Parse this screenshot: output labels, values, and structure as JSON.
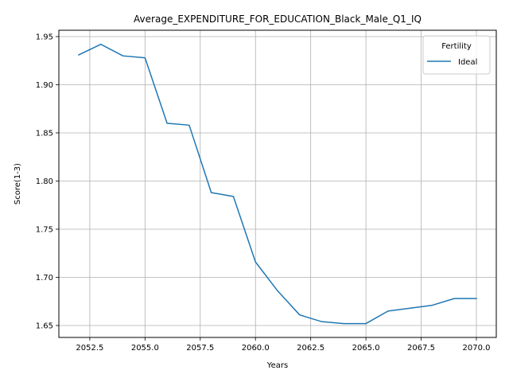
{
  "chart_data": {
    "type": "line",
    "title": "Average_EXPENDITURE_FOR_EDUCATION_Black_Male_Q1_IQ",
    "xlabel": "Years",
    "ylabel": "Score(1-3)",
    "xlim": [
      2051.1,
      2070.9
    ],
    "ylim": [
      1.6376,
      1.9566
    ],
    "xticks": [
      2052.5,
      2055.0,
      2057.5,
      2060.0,
      2062.5,
      2065.0,
      2067.5,
      2070.0
    ],
    "xtick_labels": [
      "2052.5",
      "2055.0",
      "2057.5",
      "2060.0",
      "2062.5",
      "2065.0",
      "2067.5",
      "2070.0"
    ],
    "yticks": [
      1.65,
      1.7,
      1.75,
      1.8,
      1.85,
      1.9,
      1.95
    ],
    "ytick_labels": [
      "1.65",
      "1.70",
      "1.75",
      "1.80",
      "1.85",
      "1.90",
      "1.95"
    ],
    "grid": true,
    "legend": {
      "title": "Fertility",
      "position": "top-right"
    },
    "x": [
      2052,
      2053,
      2054,
      2055,
      2056,
      2057,
      2058,
      2059,
      2060,
      2061,
      2062,
      2063,
      2064,
      2065,
      2066,
      2067,
      2068,
      2069,
      2070
    ],
    "series": [
      {
        "name": "Ideal",
        "color": "#1f77b4",
        "values": [
          1.931,
          1.942,
          1.93,
          1.928,
          1.86,
          1.858,
          1.788,
          1.784,
          1.716,
          1.686,
          1.661,
          1.654,
          1.652,
          1.652,
          1.665,
          1.668,
          1.671,
          1.678,
          1.678
        ]
      }
    ]
  }
}
